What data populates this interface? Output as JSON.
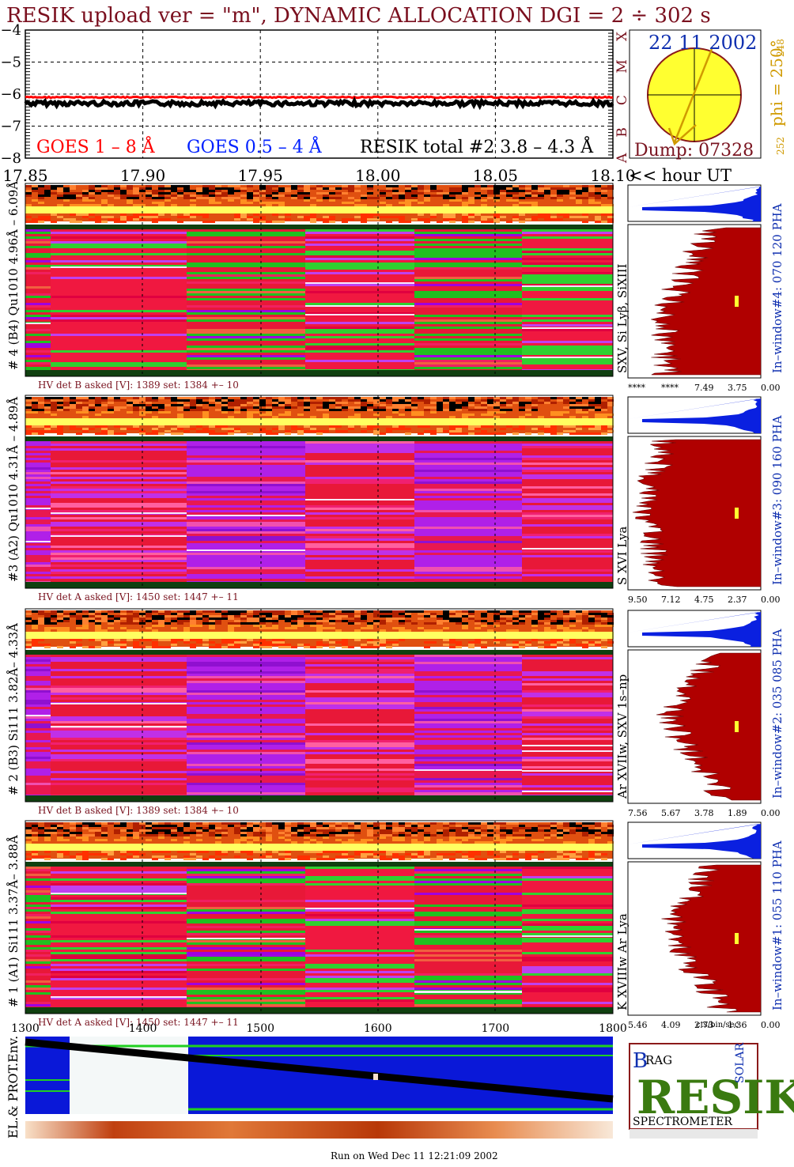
{
  "title": "RESIK upload ver = \"m\", DYNAMIC ALLOCATION  DGI =   2 ÷ 302 s",
  "goes": {
    "legend": [
      "GOES 1 – 8 Å",
      "GOES 0.5 – 4 Å",
      "RESIK total #2  3.8 – 4.3 Å"
    ],
    "colors": {
      "goes_long": "#ff0000",
      "goes_short": "#0020ff",
      "resik": "#000000"
    },
    "y_ticks": [
      "−4",
      "−5",
      "−6",
      "−7",
      "−8"
    ],
    "class_letters": [
      "X",
      "M",
      "C",
      "B",
      "A"
    ],
    "x_ticks": [
      "17.85",
      "17.90",
      "17.95",
      "18.00",
      "18.05",
      "18.10"
    ],
    "x_unit": "<< hour UT"
  },
  "sun": {
    "date": "22 11 2002",
    "dump": "Dump: 07328",
    "phi": "phi = 250°",
    "phi_sup": "248",
    "phi_low": "252"
  },
  "detectors": [
    {
      "label": "# 4 (B4) Qu1010 4.96Å – 6.09Å",
      "hv": "HV det B asked [V]:  1389 set:  1384  +–   10",
      "lines": "SXV, Si Lyβ, SiXIII",
      "window": "In–window#4:  070 120 PHA",
      "scale": [
        "****",
        "****",
        "7.49",
        "3.75",
        "0.00"
      ]
    },
    {
      "label": "#3 (A2) Qu1010  4.31Å – 4.89Å",
      "hv": "HV det A asked [V]:  1450 set:  1447  +–   11",
      "lines": "S XVI Lya",
      "window": "In–window#3:  090 160 PHA",
      "scale": [
        "9.50",
        "7.12",
        "4.75",
        "2.37",
        "0.00"
      ]
    },
    {
      "label": "# 2 (B3) Si111  3.82Å– 4.33Å",
      "hv": "HV det B asked [V]:  1389 set:  1384  +–   10",
      "lines": "Ar XVIIw, SXV 1s–np",
      "window": "In–window#2:  035 085 PHA",
      "scale": [
        "7.56",
        "5.67",
        "3.78",
        "1.89",
        "0.00"
      ]
    },
    {
      "label": "# 1 (A1) Si111  3.37Å– 3.88Å",
      "hv": "HV det A asked [V]:  1450 set:  1447  +–   11",
      "lines": "K XVIIIw  Ar Lya",
      "window": "In–window#1:  055 110 PHA",
      "scale": [
        "5.46",
        "4.09",
        "2.73",
        "1.36",
        "0.00"
      ]
    }
  ],
  "units": "cts/bin/sec",
  "bottom": {
    "label": "EL.& PROT.Env.",
    "x_ticks": [
      "1300",
      "1400",
      "1500",
      "1600",
      "1700",
      "1800"
    ]
  },
  "logo": {
    "big": "RESIK",
    "b": "B",
    "rag": "RAG",
    "solar": "SOLAR",
    "sub": "SPECTROMETER"
  },
  "footer": "Run on Wed Dec 11 12:21:09 2002",
  "chart_data": {
    "type": "line",
    "title": "RESIK upload ver = \"m\", DYNAMIC ALLOCATION  DGI =   2 ÷ 302 s",
    "xlabel": "<< hour UT",
    "ylabel": "",
    "xlim": [
      17.85,
      18.1
    ],
    "ylim": [
      -8,
      -4
    ],
    "series": [
      {
        "name": "GOES 1 – 8 Å",
        "x": [
          17.85,
          17.9,
          17.95,
          18.0,
          18.05,
          18.1
        ],
        "values": [
          -6.1,
          -6.1,
          -6.1,
          -6.1,
          -6.1,
          -6.1
        ]
      },
      {
        "name": "GOES 0.5 – 4 Å",
        "x": [],
        "values": []
      },
      {
        "name": "RESIK total #2  3.8 – 4.3 Å",
        "x": [
          17.85,
          17.9,
          17.95,
          18.0,
          18.05,
          18.1
        ],
        "values": [
          -6.25,
          -6.25,
          -6.3,
          -6.3,
          -6.25,
          -6.25
        ]
      }
    ],
    "grid": true
  }
}
